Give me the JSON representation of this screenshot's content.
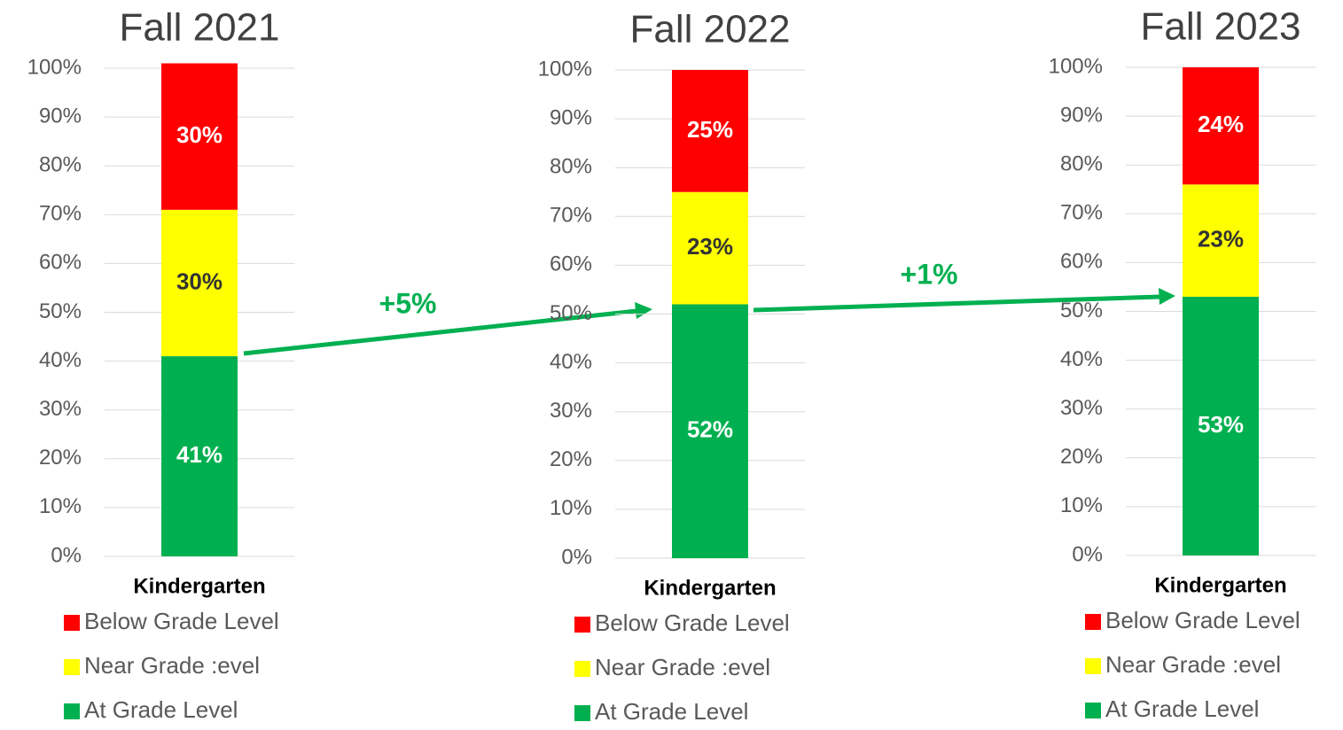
{
  "chart_data": [
    {
      "type": "stacked_bar",
      "title": "Fall 2021",
      "categories": [
        "Kindergarten"
      ],
      "series": [
        {
          "name": "At Grade Level",
          "color": "#00b050",
          "values": [
            41
          ],
          "value_labels": [
            "41%"
          ]
        },
        {
          "name": "Near Grade :evel",
          "color": "#ffff00",
          "values": [
            30
          ],
          "value_labels": [
            "30%"
          ]
        },
        {
          "name": "Below Grade Level",
          "color": "#ff0000",
          "values": [
            30
          ],
          "value_labels": [
            "30%"
          ]
        }
      ],
      "ylim": [
        0,
        100
      ],
      "yticks": [
        {
          "value": 0,
          "label": "0%"
        },
        {
          "value": 10,
          "label": "10%"
        },
        {
          "value": 20,
          "label": "20%"
        },
        {
          "value": 30,
          "label": "30%"
        },
        {
          "value": 40,
          "label": "40%"
        },
        {
          "value": 50,
          "label": "50%"
        },
        {
          "value": 60,
          "label": "60%"
        },
        {
          "value": 70,
          "label": "70%"
        },
        {
          "value": 80,
          "label": "80%"
        },
        {
          "value": 90,
          "label": "90%"
        },
        {
          "value": 100,
          "label": "100%"
        }
      ],
      "grid": true,
      "legend": "bottom"
    },
    {
      "type": "stacked_bar",
      "title": "Fall 2022",
      "categories": [
        "Kindergarten"
      ],
      "series": [
        {
          "name": "At Grade Level",
          "color": "#00b050",
          "values": [
            52
          ],
          "value_labels": [
            "52%"
          ]
        },
        {
          "name": "Near Grade :evel",
          "color": "#ffff00",
          "values": [
            23
          ],
          "value_labels": [
            "23%"
          ]
        },
        {
          "name": "Below Grade Level",
          "color": "#ff0000",
          "values": [
            25
          ],
          "value_labels": [
            "25%"
          ]
        }
      ],
      "ylim": [
        0,
        100
      ],
      "yticks": [
        {
          "value": 0,
          "label": "0%"
        },
        {
          "value": 10,
          "label": "10%"
        },
        {
          "value": 20,
          "label": "20%"
        },
        {
          "value": 30,
          "label": "30%"
        },
        {
          "value": 40,
          "label": "40%"
        },
        {
          "value": 50,
          "label": "50%"
        },
        {
          "value": 60,
          "label": "60%"
        },
        {
          "value": 70,
          "label": "70%"
        },
        {
          "value": 80,
          "label": "80%"
        },
        {
          "value": 90,
          "label": "90%"
        },
        {
          "value": 100,
          "label": "100%"
        }
      ],
      "grid": true,
      "legend": "bottom"
    },
    {
      "type": "stacked_bar",
      "title": "Fall 2023",
      "categories": [
        "Kindergarten"
      ],
      "series": [
        {
          "name": "At Grade Level",
          "color": "#00b050",
          "values": [
            53
          ],
          "value_labels": [
            "53%"
          ]
        },
        {
          "name": "Near Grade :evel",
          "color": "#ffff00",
          "values": [
            23
          ],
          "value_labels": [
            "23%"
          ]
        },
        {
          "name": "Below Grade Level",
          "color": "#ff0000",
          "values": [
            24
          ],
          "value_labels": [
            "24%"
          ]
        }
      ],
      "ylim": [
        0,
        100
      ],
      "yticks": [
        {
          "value": 0,
          "label": "0%"
        },
        {
          "value": 10,
          "label": "10%"
        },
        {
          "value": 20,
          "label": "20%"
        },
        {
          "value": 30,
          "label": "30%"
        },
        {
          "value": 40,
          "label": "40%"
        },
        {
          "value": 50,
          "label": "50%"
        },
        {
          "value": 60,
          "label": "60%"
        },
        {
          "value": 70,
          "label": "70%"
        },
        {
          "value": 80,
          "label": "80%"
        },
        {
          "value": 90,
          "label": "90%"
        },
        {
          "value": 100,
          "label": "100%"
        }
      ],
      "grid": true,
      "legend": "bottom"
    }
  ],
  "annotations": [
    {
      "text": "+5%"
    },
    {
      "text": "+1%"
    }
  ]
}
